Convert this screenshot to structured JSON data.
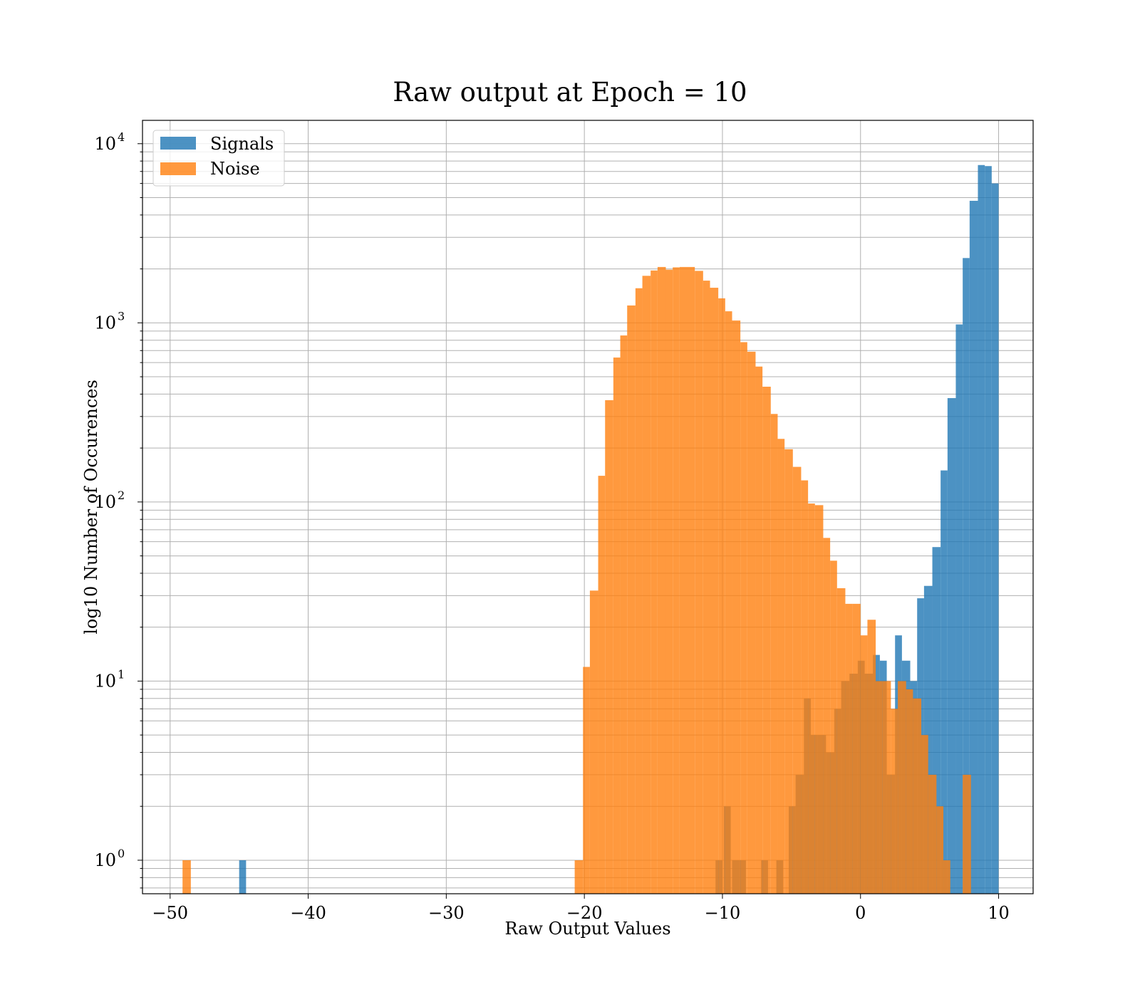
{
  "chart_data": {
    "type": "bar",
    "title": "Raw output at Epoch = 10",
    "xlabel": "Raw Output Values",
    "ylabel": "log10 Number of Occurences",
    "xlim": [
      -52,
      12.5
    ],
    "ylim": [
      0.65,
      13500
    ],
    "yscale": "log",
    "grid": true,
    "legend_position": "top-left",
    "x_ticks": [
      {
        "value": -50,
        "label": "−50"
      },
      {
        "value": -40,
        "label": "−40"
      },
      {
        "value": -30,
        "label": "−30"
      },
      {
        "value": -20,
        "label": "−20"
      },
      {
        "value": -10,
        "label": "−10"
      },
      {
        "value": 0,
        "label": "0"
      },
      {
        "value": 10,
        "label": "10"
      }
    ],
    "y_ticks": [
      {
        "value": 1,
        "base": "10",
        "exp": "0"
      },
      {
        "value": 10,
        "base": "10",
        "exp": "1"
      },
      {
        "value": 100,
        "base": "10",
        "exp": "2"
      },
      {
        "value": 1000,
        "base": "10",
        "exp": "3"
      },
      {
        "value": 10000,
        "base": "10",
        "exp": "4"
      }
    ],
    "series": [
      {
        "name": "Signals",
        "color": "#1f77b4",
        "opacity": 0.8,
        "bins": [
          {
            "x0": -45.0,
            "x1": -44.5,
            "count": 1
          },
          {
            "x0": -10.5,
            "x1": -10.0,
            "count": 1
          },
          {
            "x0": -9.9,
            "x1": -9.4,
            "count": 2
          },
          {
            "x0": -9.3,
            "x1": -8.8,
            "count": 1
          },
          {
            "x0": -8.8,
            "x1": -8.3,
            "count": 1
          },
          {
            "x0": -7.2,
            "x1": -6.7,
            "count": 1
          },
          {
            "x0": -6.1,
            "x1": -5.6,
            "count": 1
          },
          {
            "x0": -5.2,
            "x1": -4.7,
            "count": 2
          },
          {
            "x0": -4.7,
            "x1": -4.1,
            "count": 3
          },
          {
            "x0": -4.1,
            "x1": -3.6,
            "count": 8
          },
          {
            "x0": -3.6,
            "x1": -3.1,
            "count": 5
          },
          {
            "x0": -3.1,
            "x1": -2.5,
            "count": 5
          },
          {
            "x0": -2.5,
            "x1": -1.9,
            "count": 4
          },
          {
            "x0": -1.9,
            "x1": -1.4,
            "count": 7
          },
          {
            "x0": -1.4,
            "x1": -0.8,
            "count": 10
          },
          {
            "x0": -0.8,
            "x1": -0.2,
            "count": 11
          },
          {
            "x0": -0.2,
            "x1": 0.3,
            "count": 13
          },
          {
            "x0": 0.3,
            "x1": 0.9,
            "count": 11
          },
          {
            "x0": 0.9,
            "x1": 1.4,
            "count": 14
          },
          {
            "x0": 1.4,
            "x1": 1.9,
            "count": 13
          },
          {
            "x0": 1.9,
            "x1": 2.5,
            "count": 3
          },
          {
            "x0": 2.5,
            "x1": 3.0,
            "count": 18
          },
          {
            "x0": 3.0,
            "x1": 3.6,
            "count": 13
          },
          {
            "x0": 3.6,
            "x1": 4.1,
            "count": 10
          },
          {
            "x0": 4.1,
            "x1": 4.6,
            "count": 29
          },
          {
            "x0": 4.6,
            "x1": 5.2,
            "count": 34
          },
          {
            "x0": 5.2,
            "x1": 5.8,
            "count": 56
          },
          {
            "x0": 5.8,
            "x1": 6.3,
            "count": 150
          },
          {
            "x0": 6.3,
            "x1": 6.9,
            "count": 380
          },
          {
            "x0": 6.9,
            "x1": 7.4,
            "count": 980
          },
          {
            "x0": 7.4,
            "x1": 7.9,
            "count": 2300
          },
          {
            "x0": 7.9,
            "x1": 8.5,
            "count": 4800
          },
          {
            "x0": 8.5,
            "x1": 9.0,
            "count": 7600
          },
          {
            "x0": 9.0,
            "x1": 9.5,
            "count": 7500
          },
          {
            "x0": 9.5,
            "x1": 10.0,
            "count": 6000
          }
        ]
      },
      {
        "name": "Noise",
        "color": "#ff7f0e",
        "opacity": 0.8,
        "bins": [
          {
            "x0": -49.1,
            "x1": -48.5,
            "count": 1
          },
          {
            "x0": -20.7,
            "x1": -20.1,
            "count": 1
          },
          {
            "x0": -20.1,
            "x1": -19.6,
            "count": 12
          },
          {
            "x0": -19.6,
            "x1": -19.0,
            "count": 32
          },
          {
            "x0": -19.0,
            "x1": -18.5,
            "count": 140
          },
          {
            "x0": -18.5,
            "x1": -17.9,
            "count": 370
          },
          {
            "x0": -17.9,
            "x1": -17.4,
            "count": 640
          },
          {
            "x0": -17.4,
            "x1": -16.9,
            "count": 850
          },
          {
            "x0": -16.9,
            "x1": -16.3,
            "count": 1250
          },
          {
            "x0": -16.3,
            "x1": -15.8,
            "count": 1560
          },
          {
            "x0": -15.8,
            "x1": -15.2,
            "count": 1830
          },
          {
            "x0": -15.2,
            "x1": -14.7,
            "count": 1960
          },
          {
            "x0": -14.7,
            "x1": -14.1,
            "count": 2050
          },
          {
            "x0": -14.1,
            "x1": -13.6,
            "count": 1980
          },
          {
            "x0": -13.6,
            "x1": -13.1,
            "count": 2040
          },
          {
            "x0": -13.1,
            "x1": -12.5,
            "count": 2050
          },
          {
            "x0": -12.5,
            "x1": -12.0,
            "count": 2050
          },
          {
            "x0": -12.0,
            "x1": -11.4,
            "count": 1950
          },
          {
            "x0": -11.4,
            "x1": -10.9,
            "count": 1720
          },
          {
            "x0": -10.9,
            "x1": -10.3,
            "count": 1570
          },
          {
            "x0": -10.3,
            "x1": -9.8,
            "count": 1370
          },
          {
            "x0": -9.8,
            "x1": -9.3,
            "count": 1160
          },
          {
            "x0": -9.3,
            "x1": -8.7,
            "count": 1030
          },
          {
            "x0": -8.7,
            "x1": -8.2,
            "count": 780
          },
          {
            "x0": -8.2,
            "x1": -7.6,
            "count": 690
          },
          {
            "x0": -7.6,
            "x1": -7.1,
            "count": 570
          },
          {
            "x0": -7.1,
            "x1": -6.5,
            "count": 440
          },
          {
            "x0": -6.5,
            "x1": -6.0,
            "count": 310
          },
          {
            "x0": -6.0,
            "x1": -5.5,
            "count": 225
          },
          {
            "x0": -5.5,
            "x1": -4.9,
            "count": 197
          },
          {
            "x0": -4.9,
            "x1": -4.3,
            "count": 157
          },
          {
            "x0": -4.3,
            "x1": -3.8,
            "count": 132
          },
          {
            "x0": -3.8,
            "x1": -3.3,
            "count": 98
          },
          {
            "x0": -3.3,
            "x1": -2.7,
            "count": 96
          },
          {
            "x0": -2.7,
            "x1": -2.2,
            "count": 63
          },
          {
            "x0": -2.2,
            "x1": -1.7,
            "count": 47
          },
          {
            "x0": -1.7,
            "x1": -1.1,
            "count": 33
          },
          {
            "x0": -1.1,
            "x1": -0.6,
            "count": 27
          },
          {
            "x0": -0.6,
            "x1": 0.0,
            "count": 27
          },
          {
            "x0": 0.0,
            "x1": 0.5,
            "count": 18
          },
          {
            "x0": 0.5,
            "x1": 1.1,
            "count": 22
          },
          {
            "x0": 1.1,
            "x1": 1.6,
            "count": 10
          },
          {
            "x0": 1.6,
            "x1": 2.2,
            "count": 10
          },
          {
            "x0": 2.2,
            "x1": 2.7,
            "count": 7
          },
          {
            "x0": 2.7,
            "x1": 3.3,
            "count": 10
          },
          {
            "x0": 3.3,
            "x1": 3.8,
            "count": 9
          },
          {
            "x0": 3.8,
            "x1": 4.4,
            "count": 8
          },
          {
            "x0": 4.4,
            "x1": 4.9,
            "count": 5
          },
          {
            "x0": 4.9,
            "x1": 5.5,
            "count": 3
          },
          {
            "x0": 5.5,
            "x1": 6.0,
            "count": 2
          },
          {
            "x0": 6.0,
            "x1": 6.5,
            "count": 1
          },
          {
            "x0": 7.4,
            "x1": 8.0,
            "count": 3
          }
        ]
      }
    ]
  }
}
